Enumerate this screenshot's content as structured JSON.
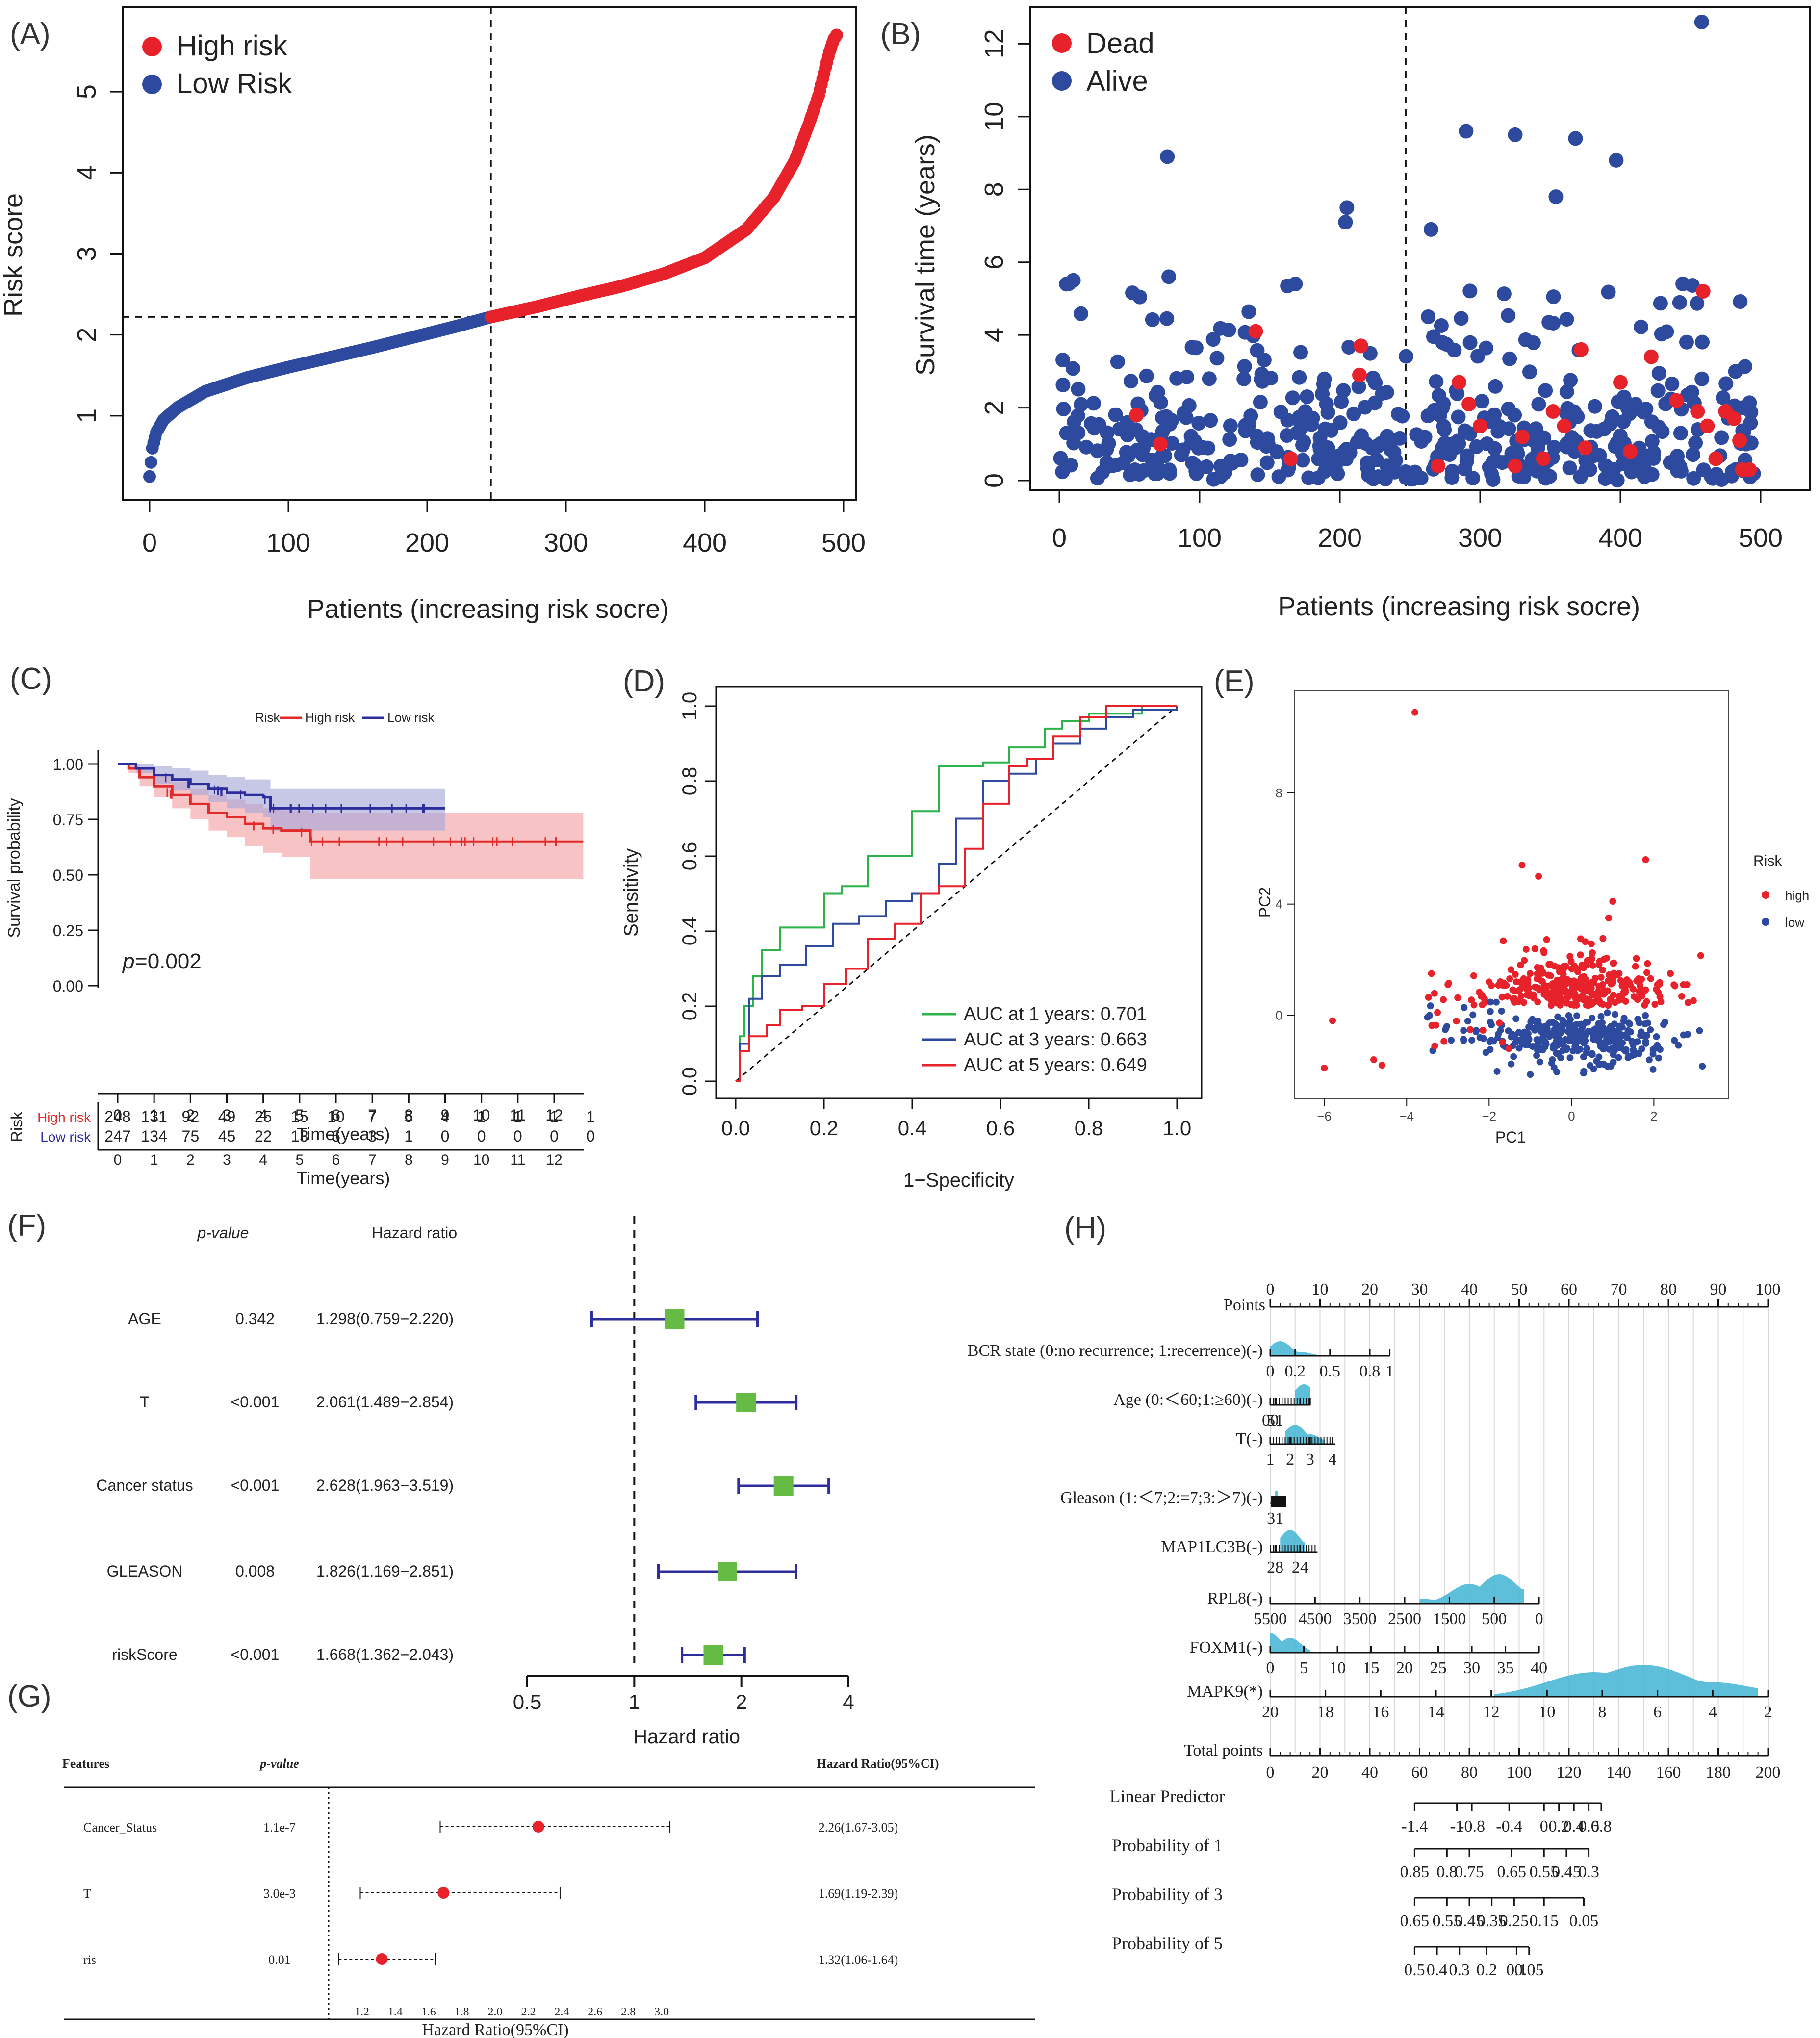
{
  "colors": {
    "red": "#e8222a",
    "blue": "#2e4a9e",
    "green": "#2db34a",
    "km_red": "#e22a2a",
    "km_blue": "#2d2d9e",
    "band_red": "#f5a3a6",
    "band_blue": "#a9a9d9",
    "forest_green": "#66bb44",
    "nomo_fill": "#4bb8d6"
  },
  "panel_labels": [
    "(A)",
    "(B)",
    "(C)",
    "(D)",
    "(E)",
    "(F)",
    "(G)",
    "(H)"
  ],
  "chart_data": [
    {
      "panel": "A",
      "type": "scatter",
      "title": "",
      "xlabel": "Patients (increasing risk socre)",
      "ylabel": "Risk score",
      "xlim": [
        0,
        500
      ],
      "ylim": [
        0.2,
        5.8
      ],
      "xticks": [
        "0",
        "100",
        "200",
        "300",
        "400",
        "500"
      ],
      "yticks": [
        "1",
        "2",
        "3",
        "4",
        "5"
      ],
      "legend": [
        "High risk",
        "Low Risk"
      ],
      "cutoff_x": 246,
      "cutoff_y": 2.22,
      "series": [
        {
          "name": "Low Risk",
          "curve_x": [
            0,
            2,
            5,
            10,
            20,
            40,
            70,
            100,
            130,
            160,
            190,
            220,
            246
          ],
          "curve_y": [
            0.25,
            0.6,
            0.8,
            0.95,
            1.1,
            1.3,
            1.47,
            1.6,
            1.72,
            1.84,
            1.97,
            2.1,
            2.22
          ]
        },
        {
          "name": "High risk",
          "curve_x": [
            246,
            280,
            310,
            340,
            370,
            400,
            430,
            450,
            465,
            475,
            482,
            487,
            490,
            493,
            495
          ],
          "curve_y": [
            2.22,
            2.35,
            2.48,
            2.6,
            2.75,
            2.95,
            3.3,
            3.7,
            4.15,
            4.6,
            4.95,
            5.3,
            5.5,
            5.65,
            5.7
          ]
        }
      ]
    },
    {
      "panel": "B",
      "type": "scatter",
      "xlabel": "Patients (increasing risk socre)",
      "ylabel": "Survival time (years)",
      "xlim": [
        0,
        500
      ],
      "ylim": [
        0,
        12.8
      ],
      "xticks": [
        "0",
        "100",
        "200",
        "300",
        "400",
        "500"
      ],
      "yticks": [
        "0",
        "2",
        "4",
        "6",
        "8",
        "10",
        "12"
      ],
      "legend": [
        "Dead",
        "Alive"
      ],
      "cutoff_x": 247,
      "highlights_alive": [
        [
          77,
          8.9
        ],
        [
          290,
          9.6
        ],
        [
          325,
          9.5
        ],
        [
          368,
          9.4
        ],
        [
          397,
          8.8
        ],
        [
          354,
          7.8
        ],
        [
          205,
          7.5
        ],
        [
          204,
          7.1
        ],
        [
          458,
          12.6
        ],
        [
          265,
          6.9
        ],
        [
          5,
          5.4
        ],
        [
          10,
          5.5
        ],
        [
          78,
          5.6
        ],
        [
          263,
          4.5
        ]
      ],
      "dead_points": [
        [
          55,
          1.8
        ],
        [
          72,
          1.0
        ],
        [
          140,
          4.1
        ],
        [
          165,
          0.6
        ],
        [
          215,
          3.7
        ],
        [
          214,
          2.9
        ],
        [
          285,
          2.7
        ],
        [
          292,
          2.1
        ],
        [
          300,
          1.5
        ],
        [
          325,
          0.4
        ],
        [
          352,
          1.9
        ],
        [
          360,
          1.5
        ],
        [
          372,
          3.6
        ],
        [
          375,
          0.9
        ],
        [
          400,
          2.7
        ],
        [
          407,
          0.8
        ],
        [
          422,
          3.4
        ],
        [
          440,
          2.2
        ],
        [
          455,
          1.9
        ],
        [
          459,
          5.2
        ],
        [
          462,
          1.5
        ],
        [
          468,
          0.6
        ],
        [
          475,
          1.9
        ],
        [
          481,
          1.7
        ],
        [
          485,
          1.1
        ],
        [
          487,
          0.3
        ],
        [
          492,
          0.3
        ],
        [
          270,
          0.4
        ],
        [
          330,
          1.2
        ],
        [
          345,
          0.6
        ]
      ]
    },
    {
      "panel": "C",
      "type": "line",
      "xlabel": "Time(years)",
      "ylabel": "Survival probability",
      "xlim": [
        0,
        13
      ],
      "ylim": [
        0,
        1
      ],
      "xticks": [
        "0",
        "1",
        "2",
        "3",
        "4",
        "5",
        "6",
        "7",
        "8",
        "9",
        "10",
        "11",
        "12"
      ],
      "yticks": [
        "0.00",
        "0.25",
        "0.50",
        "0.75",
        "1.00"
      ],
      "legend_title": "Risk",
      "legend": [
        "High risk",
        "Low risk"
      ],
      "pvalue_label": "p",
      "pvalue": "=0.002",
      "series": [
        {
          "name": "High risk",
          "t": [
            0,
            0.3,
            0.6,
            1,
            1.5,
            2,
            2.5,
            3,
            3.5,
            4,
            4.5,
            5,
            5.3,
            12.8
          ],
          "s": [
            1,
            0.98,
            0.94,
            0.9,
            0.86,
            0.82,
            0.78,
            0.76,
            0.73,
            0.71,
            0.7,
            0.7,
            0.65,
            0.65
          ],
          "lower": [
            1,
            0.96,
            0.9,
            0.85,
            0.8,
            0.75,
            0.7,
            0.67,
            0.63,
            0.6,
            0.58,
            0.58,
            0.48,
            0.48
          ],
          "upper": [
            1,
            1,
            0.98,
            0.95,
            0.92,
            0.89,
            0.86,
            0.84,
            0.82,
            0.8,
            0.79,
            0.79,
            0.78,
            0.78
          ]
        },
        {
          "name": "Low risk",
          "t": [
            0,
            0.5,
            1,
            1.5,
            2,
            2.5,
            3,
            3.5,
            4,
            4.2,
            9
          ],
          "s": [
            1,
            0.98,
            0.95,
            0.93,
            0.91,
            0.89,
            0.87,
            0.86,
            0.85,
            0.8,
            0.8
          ],
          "lower": [
            1,
            0.96,
            0.91,
            0.88,
            0.86,
            0.83,
            0.8,
            0.78,
            0.76,
            0.7,
            0.7
          ],
          "upper": [
            1,
            1,
            0.99,
            0.98,
            0.97,
            0.95,
            0.94,
            0.93,
            0.93,
            0.89,
            0.89
          ]
        }
      ],
      "risk_table": {
        "label": "Risk",
        "xlabel": "Time(years)",
        "rows": [
          {
            "name": "High risk",
            "counts": [
              "248",
              "131",
              "92",
              "49",
              "25",
              "15",
              "10",
              "7",
              "5",
              "4",
              "1",
              "1",
              "1",
              "1"
            ]
          },
          {
            "name": "Low risk",
            "counts": [
              "247",
              "134",
              "75",
              "45",
              "22",
              "13",
              "6",
              "3",
              "1",
              "0",
              "0",
              "0",
              "0",
              "0"
            ]
          }
        ]
      }
    },
    {
      "panel": "D",
      "type": "line",
      "xlabel": "1−Specificity",
      "ylabel": "Sensitivity",
      "xlim": [
        0,
        1
      ],
      "ylim": [
        0,
        1
      ],
      "xticks": [
        "0.0",
        "0.2",
        "0.4",
        "0.6",
        "0.8",
        "1.0"
      ],
      "yticks": [
        "0.0",
        "0.2",
        "0.4",
        "0.6",
        "0.8",
        "1.0"
      ],
      "series": [
        {
          "name": "AUC at 1 years: 0.701",
          "fpr": [
            0,
            0.01,
            0.02,
            0.04,
            0.06,
            0.1,
            0.14,
            0.2,
            0.24,
            0.3,
            0.34,
            0.4,
            0.46,
            0.5,
            0.56,
            0.62,
            0.7,
            0.74,
            0.8,
            0.86,
            0.92,
            1
          ],
          "tpr": [
            0,
            0.12,
            0.2,
            0.28,
            0.35,
            0.41,
            0.41,
            0.5,
            0.52,
            0.6,
            0.6,
            0.72,
            0.84,
            0.84,
            0.85,
            0.89,
            0.94,
            0.96,
            0.98,
            0.98,
            1,
            1
          ]
        },
        {
          "name": "AUC at 3 years: 0.663",
          "fpr": [
            0,
            0.01,
            0.03,
            0.06,
            0.1,
            0.16,
            0.22,
            0.28,
            0.34,
            0.4,
            0.46,
            0.5,
            0.56,
            0.62,
            0.68,
            0.72,
            0.78,
            0.84,
            0.9,
            1
          ],
          "tpr": [
            0,
            0.1,
            0.22,
            0.28,
            0.31,
            0.36,
            0.42,
            0.44,
            0.48,
            0.5,
            0.58,
            0.7,
            0.8,
            0.82,
            0.86,
            0.9,
            0.94,
            0.97,
            0.99,
            1
          ]
        },
        {
          "name": "AUC at 5 years: 0.649",
          "fpr": [
            0,
            0.01,
            0.03,
            0.07,
            0.1,
            0.15,
            0.2,
            0.25,
            0.3,
            0.36,
            0.42,
            0.46,
            0.52,
            0.56,
            0.62,
            0.66,
            0.72,
            0.78,
            0.84,
            0.9,
            1
          ],
          "tpr": [
            0,
            0.08,
            0.12,
            0.15,
            0.19,
            0.2,
            0.26,
            0.3,
            0.38,
            0.42,
            0.5,
            0.52,
            0.62,
            0.74,
            0.84,
            0.86,
            0.92,
            0.97,
            1,
            1,
            1
          ]
        }
      ]
    },
    {
      "panel": "E",
      "type": "scatter",
      "xlabel": "PC1",
      "ylabel": "PC2",
      "xlim": [
        -6.3,
        3.4
      ],
      "ylim": [
        -2.5,
        11.3
      ],
      "xticks": [
        "−6",
        "−4",
        "−2",
        "0",
        "2"
      ],
      "yticks": [
        "0",
        "4",
        "8"
      ],
      "legend_title": "Risk",
      "legend": [
        "high",
        "low"
      ],
      "outliers_high": [
        [
          -3.8,
          10.9
        ],
        [
          1.8,
          5.6
        ],
        [
          -1.2,
          5.4
        ],
        [
          -0.8,
          5.0
        ],
        [
          -5.8,
          -0.2
        ],
        [
          -6.0,
          -1.9
        ],
        [
          -4.8,
          -1.6
        ],
        [
          -4.6,
          -1.8
        ],
        [
          -3.4,
          1.5
        ],
        [
          -3.0,
          1.1
        ],
        [
          -2.0,
          1.2
        ],
        [
          0.9,
          3.5
        ],
        [
          1.0,
          4.1
        ],
        [
          2.4,
          1.5
        ],
        [
          2.8,
          1.1
        ]
      ]
    },
    {
      "panel": "F",
      "type": "scatter",
      "subtype": "forest",
      "xlabel": "Hazard ratio",
      "columns": [
        "p-value",
        "Hazard ratio"
      ],
      "xscale": "log2",
      "xlim": [
        0.5,
        4
      ],
      "xticks": [
        "0.5",
        "1",
        "2",
        "4"
      ],
      "rows": [
        {
          "name": "AGE",
          "p": "0.342",
          "hr_text": "1.298(0.759−2.220)",
          "hr": 1.298,
          "lo": 0.759,
          "hi": 2.22
        },
        {
          "name": "T",
          "p": "<0.001",
          "hr_text": "2.061(1.489−2.854)",
          "hr": 2.061,
          "lo": 1.489,
          "hi": 2.854
        },
        {
          "name": "Cancer status",
          "p": "<0.001",
          "hr_text": "2.628(1.963−3.519)",
          "hr": 2.628,
          "lo": 1.963,
          "hi": 3.519
        },
        {
          "name": "GLEASON",
          "p": "0.008",
          "hr_text": "1.826(1.169−2.851)",
          "hr": 1.826,
          "lo": 1.169,
          "hi": 2.851
        },
        {
          "name": "riskScore",
          "p": "<0.001",
          "hr_text": "1.668(1.362−2.043)",
          "hr": 1.668,
          "lo": 1.362,
          "hi": 2.043
        }
      ]
    },
    {
      "panel": "G",
      "type": "scatter",
      "subtype": "forest",
      "xlabel": "Hazard Ratio(95%CI)",
      "columns": [
        "Features",
        "p-value",
        "Hazard Ratio(95%CI)"
      ],
      "xlim": [
        1.0,
        3.15
      ],
      "xticks": [
        "1.2",
        "1.4",
        "1.6",
        "1.8",
        "2.0",
        "2.2",
        "2.4",
        "2.6",
        "2.8",
        "3.0"
      ],
      "rows": [
        {
          "name": "Cancer_Status",
          "p": "1.1e-7",
          "hr_text": "2.26(1.67-3.05)",
          "hr": 2.26,
          "lo": 1.67,
          "hi": 3.05
        },
        {
          "name": "T",
          "p": "3.0e-3",
          "hr_text": "1.69(1.19-2.39)",
          "hr": 1.69,
          "lo": 1.19,
          "hi": 2.39
        },
        {
          "name": "ris",
          "p": "0.01",
          "hr_text": "1.32(1.06-1.64)",
          "hr": 1.32,
          "lo": 1.06,
          "hi": 1.64
        }
      ]
    },
    {
      "panel": "H",
      "type": "table",
      "subtype": "nomogram",
      "points_label": "Points",
      "points_ticks": [
        "0",
        "10",
        "20",
        "30",
        "40",
        "50",
        "60",
        "70",
        "80",
        "90",
        "100"
      ],
      "rows": [
        {
          "label": "BCR state (0:no recurrence; 1:recerrence)(-)",
          "ticks": [
            "0",
            "0.2",
            "0.5",
            "0.8",
            "1"
          ]
        },
        {
          "label": "Age (0:＜60;1:≥60)(-)",
          "ticks": [
            "00",
            "51"
          ]
        },
        {
          "label": "T(-)",
          "ticks": [
            "1",
            "2",
            "3",
            "4"
          ]
        },
        {
          "label": "Gleason (1:＜7;2:=7;3:＞7)(-)",
          "ticks": [
            "31"
          ]
        },
        {
          "label": "MAP1LC3B(-)",
          "ticks": [
            "28",
            "24"
          ]
        },
        {
          "label": "RPL8(-)",
          "ticks": [
            "5500",
            "4500",
            "3500",
            "2500",
            "1500",
            "500",
            "0"
          ]
        },
        {
          "label": "FOXM1(-)",
          "ticks": [
            "0",
            "5",
            "10",
            "15",
            "20",
            "25",
            "30",
            "35",
            "40"
          ]
        },
        {
          "label": "MAPK9(*)",
          "ticks": [
            "20",
            "18",
            "16",
            "14",
            "12",
            "10",
            "8",
            "6",
            "4",
            "2"
          ]
        }
      ],
      "total_label": "Total points",
      "total_ticks": [
        "0",
        "20",
        "40",
        "60",
        "80",
        "100",
        "120",
        "140",
        "160",
        "180",
        "200"
      ],
      "lp_label": "Linear Predictor",
      "lp_ticks": [
        "-1.4",
        "-1",
        "-0.8",
        "-0.4",
        "0",
        "0.2",
        "0.4",
        "0.6",
        "0.8"
      ],
      "prob_rows": [
        {
          "label": "Probability of 1",
          "ticks": [
            "0.85",
            "0.8",
            "0.75",
            "0.65",
            "0.55",
            "0.45",
            "0.3"
          ]
        },
        {
          "label": "Probability of 3",
          "ticks": [
            "0.65",
            "0.55",
            "0.45",
            "0.35",
            "0.25",
            "0.15",
            "0.05"
          ]
        },
        {
          "label": "Probability of 5",
          "ticks": [
            "0.5",
            "0.4",
            "0.3",
            "0.2",
            "0.1",
            "0.05"
          ]
        }
      ]
    }
  ]
}
